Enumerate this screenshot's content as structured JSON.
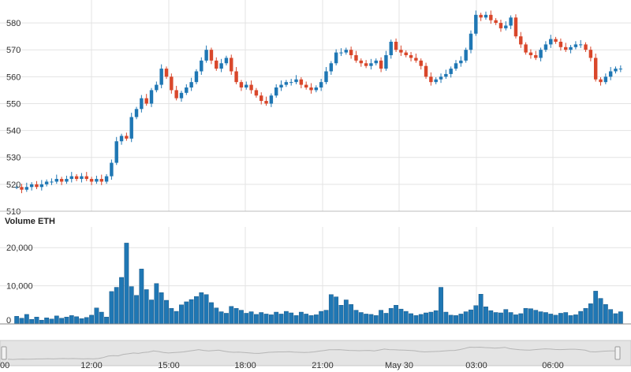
{
  "chart_data": [
    {
      "type": "candlestick",
      "title": "",
      "colors": {
        "up": "#1f77b4",
        "down": "#d9472b",
        "grid": "#e3e3e3"
      },
      "ylim": [
        510,
        585
      ],
      "y_ticks": [
        "510",
        "520",
        "530",
        "540",
        "550",
        "560",
        "570",
        "580"
      ],
      "x_labels": [
        "12:00",
        "15:00",
        "18:00",
        "21:00",
        "May 30",
        "03:00",
        "06:00"
      ],
      "x_edge_label": "00",
      "candles_close": [
        519,
        518,
        519,
        520,
        519,
        520,
        521,
        521,
        522,
        521,
        522,
        523,
        522,
        523,
        522,
        521,
        522,
        521,
        523,
        528,
        536,
        538,
        537,
        545,
        548,
        552,
        550,
        555,
        557,
        563,
        560,
        555,
        552,
        554,
        556,
        558,
        562,
        566,
        570,
        566,
        563,
        565,
        567,
        562,
        558,
        556,
        557,
        555,
        553,
        551,
        550,
        553,
        556,
        557,
        558,
        558,
        559,
        557,
        556,
        555,
        556,
        558,
        562,
        565,
        569,
        569,
        570,
        568,
        566,
        565,
        564,
        565,
        566,
        563,
        568,
        573,
        570,
        569,
        568,
        567,
        566,
        564,
        560,
        558,
        559,
        560,
        561,
        563,
        565,
        566,
        570,
        576,
        583,
        582,
        583,
        581,
        580,
        578,
        579,
        582,
        575,
        572,
        569,
        568,
        567,
        570,
        572,
        574,
        573,
        571,
        570,
        571,
        572,
        572,
        570,
        567,
        559,
        558,
        560,
        562,
        563,
        563
      ]
    },
    {
      "type": "bar",
      "title": "Volume ETH",
      "ylim": [
        0,
        25000
      ],
      "y_ticks": [
        "0",
        "10,000",
        "20,000"
      ],
      "values": [
        2000,
        1500,
        2500,
        1200,
        1800,
        1000,
        1600,
        1300,
        2100,
        1500,
        1800,
        2200,
        1900,
        1400,
        1700,
        2300,
        4200,
        3100,
        1800,
        8500,
        9600,
        12200,
        21200,
        9800,
        7500,
        14400,
        9000,
        6300,
        10600,
        8200,
        6200,
        4100,
        3300,
        5000,
        5800,
        6400,
        7200,
        8200,
        7700,
        5600,
        4200,
        3200,
        2800,
        4600,
        4100,
        3600,
        2800,
        3200,
        2500,
        3000,
        2600,
        2400,
        3100,
        2600,
        3300,
        2900,
        2200,
        3100,
        2600,
        2200,
        2400,
        3300,
        3600,
        7700,
        7100,
        4900,
        6300,
        5100,
        3600,
        3000,
        2600,
        2500,
        2200,
        3600,
        2800,
        4100,
        4900,
        3900,
        3300,
        2700,
        2200,
        2500,
        2900,
        3100,
        3500,
        9600,
        3100,
        2300,
        2200,
        2600,
        3200,
        3700,
        4800,
        7800,
        4500,
        3500,
        3000,
        2900,
        3800,
        3000,
        2400,
        2700,
        4100,
        4000,
        3600,
        3200,
        3000,
        2600,
        2300,
        2800,
        3000,
        2200,
        2400,
        3300,
        4100,
        5300,
        8600,
        6700,
        5100,
        3800,
        2700,
        3200
      ]
    }
  ]
}
